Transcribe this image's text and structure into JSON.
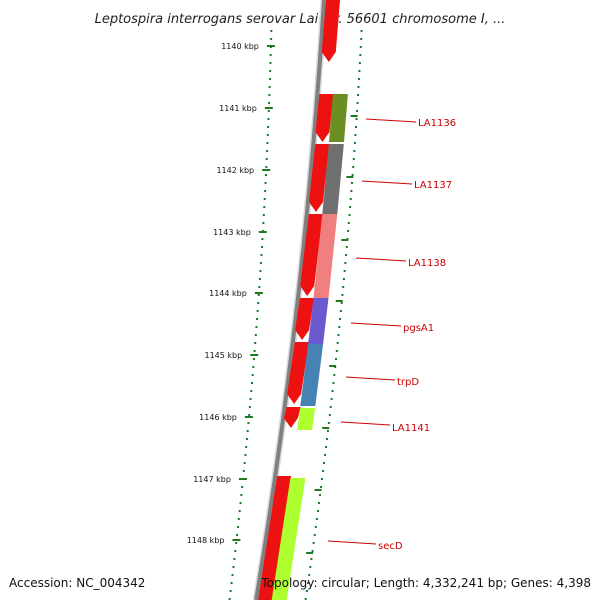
{
  "title": "Leptospira interrogans serovar Lai str. 56601 chromosome I, ...",
  "footer": {
    "accession": "Accession: NC_004342",
    "stats": "Topology: circular; Length: 4,332,241 bp; Genes: 4,398"
  },
  "ticks": [
    {
      "label": "1140 kbp"
    },
    {
      "label": "1141 kbp"
    },
    {
      "label": "1142 kbp"
    },
    {
      "label": "1143 kbp"
    },
    {
      "label": "1144 kbp"
    },
    {
      "label": "1145 kbp"
    },
    {
      "label": "1146 kbp"
    },
    {
      "label": "1147 kbp"
    },
    {
      "label": "1148 kbp"
    }
  ],
  "genes": [
    {
      "name": "LA1136",
      "color": "#6b8e23"
    },
    {
      "name": "LA1137",
      "color": "#707070"
    },
    {
      "name": "LA1138",
      "color": "#f08080"
    },
    {
      "name": "pgsA1",
      "color": "#6a5acd"
    },
    {
      "name": "trpD",
      "color": "#4682b4"
    },
    {
      "name": "LA1141",
      "color": "#adff2f"
    },
    {
      "name": "secD",
      "color": "#adff2f"
    }
  ],
  "colors": {
    "cds": "#ee1111",
    "tick": "#1e7a1e",
    "backbone": "#808080",
    "label": "#cc0000"
  }
}
